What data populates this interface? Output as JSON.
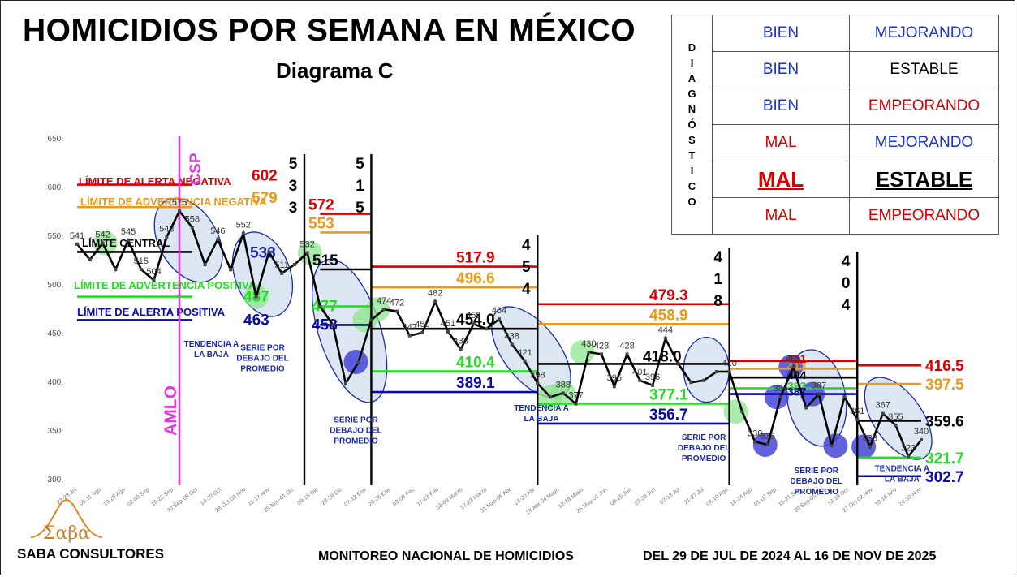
{
  "title": "HOMICIDIOS POR SEMANA EN MÉXICO",
  "subtitle": "Diagrama C",
  "colors": {
    "red": "#d60000",
    "orange": "#e89a1a",
    "black": "#000000",
    "green": "#22dd22",
    "blue": "#0a0aa8",
    "magenta": "#e53ad8",
    "series": "#000000"
  },
  "diagnosis": {
    "side_letters": [
      "D",
      "I",
      "A",
      "G",
      "N",
      "Ó",
      "S",
      "T",
      "I",
      "C",
      "O"
    ],
    "rows": [
      {
        "state": "BIEN",
        "state_color": "#1a35c8",
        "trend": "MEJORANDO",
        "trend_color": "#1a35c8",
        "emphasis": false
      },
      {
        "state": "BIEN",
        "state_color": "#1a35c8",
        "trend": "ESTABLE",
        "trend_color": "#000000",
        "emphasis": false
      },
      {
        "state": "BIEN",
        "state_color": "#1a35c8",
        "trend": "EMPEORANDO",
        "trend_color": "#d60000",
        "emphasis": false
      },
      {
        "state": "MAL",
        "state_color": "#d60000",
        "trend": "MEJORANDO",
        "trend_color": "#1a35c8",
        "emphasis": false
      },
      {
        "state": "MAL",
        "state_color": "#d60000",
        "trend": "ESTABLE",
        "trend_color": "#000000",
        "emphasis": true
      },
      {
        "state": "MAL",
        "state_color": "#d60000",
        "trend": "EMPEORANDO",
        "trend_color": "#d60000",
        "emphasis": false
      }
    ]
  },
  "chart_data": {
    "type": "line",
    "ylim": [
      300,
      650
    ],
    "yticks": [
      "650.",
      "600.",
      "550.",
      "500.",
      "450.",
      "400.",
      "350.",
      "300."
    ],
    "x_tick_labels": [
      "22-28 Jul",
      "05-11 Ago",
      "19-25 Ago",
      "02-08 Sep",
      "16-22 Sep",
      "30 Sep-06 Oct",
      "14-20 Oct",
      "28 Oct-03 Nov",
      "11-17 Nov",
      "25 Nov-01 Dic",
      "09-15 Dic",
      "23-29 Dic",
      "07-12 Ene",
      "20-26 Ene",
      "03-09 Feb",
      "17-23 Feb",
      "03-09 Marzo",
      "17-23 Marzo",
      "31 Mzo-06 Abr",
      "14-20 Abr",
      "28 Abr-04 Mayo",
      "12-18 Mayo",
      "26 May-01 Jun",
      "09-15 Jun",
      "23-29 Jun",
      "07-13 Jul",
      "21-27 Jul",
      "04-10 Ago",
      "18-24 Ago",
      "01-07 Sep",
      "15-21 Sep",
      "29 Sep-05 Oct",
      "13-19 Oct",
      "27 Oct-02 Nov",
      "10-16 Nov",
      "24-30 Nov"
    ],
    "series_values": [
      541,
      525,
      542,
      515,
      545,
      515,
      504,
      548,
      575,
      558,
      520,
      546,
      515,
      552,
      487,
      533,
      511,
      520,
      532,
      477,
      458,
      398,
      420,
      463,
      474,
      472,
      447,
      450,
      482,
      451,
      433,
      459,
      454,
      464,
      438,
      421,
      398,
      384,
      388,
      377,
      430,
      428,
      395,
      428,
      401,
      396,
      444,
      418,
      399,
      401,
      410,
      410,
      369,
      338,
      335,
      384,
      415,
      373,
      387,
      334,
      384,
      361,
      333,
      367,
      355,
      323,
      340
    ],
    "labels_shown": [
      {
        "i": 0,
        "t": "541"
      },
      {
        "i": 2,
        "t": "542"
      },
      {
        "i": 4,
        "t": "545"
      },
      {
        "i": 5,
        "t": "515"
      },
      {
        "i": 6,
        "t": "504"
      },
      {
        "i": 7,
        "t": "548"
      },
      {
        "i": 8,
        "t": "575"
      },
      {
        "i": 9,
        "t": "558"
      },
      {
        "i": 11,
        "t": "546"
      },
      {
        "i": 13,
        "t": "552"
      },
      {
        "i": 16,
        "t": "511"
      },
      {
        "i": 18,
        "t": "532"
      },
      {
        "i": 24,
        "t": "474"
      },
      {
        "i": 25,
        "t": "472"
      },
      {
        "i": 26,
        "t": "447"
      },
      {
        "i": 27,
        "t": "450"
      },
      {
        "i": 28,
        "t": "482"
      },
      {
        "i": 29,
        "t": "451"
      },
      {
        "i": 30,
        "t": "433"
      },
      {
        "i": 31,
        "t": "459"
      },
      {
        "i": 33,
        "t": "464"
      },
      {
        "i": 34,
        "t": "438"
      },
      {
        "i": 35,
        "t": "421"
      },
      {
        "i": 36,
        "t": "398"
      },
      {
        "i": 38,
        "t": "388"
      },
      {
        "i": 39,
        "t": "377"
      },
      {
        "i": 40,
        "t": "430"
      },
      {
        "i": 41,
        "t": "428"
      },
      {
        "i": 42,
        "t": "395"
      },
      {
        "i": 43,
        "t": "428"
      },
      {
        "i": 44,
        "t": "401"
      },
      {
        "i": 45,
        "t": "396"
      },
      {
        "i": 46,
        "t": "444"
      },
      {
        "i": 51,
        "t": "410"
      },
      {
        "i": 53,
        "t": "338"
      },
      {
        "i": 54,
        "t": "335"
      },
      {
        "i": 55,
        "t": "384"
      },
      {
        "i": 56,
        "t": "415"
      },
      {
        "i": 58,
        "t": "387"
      },
      {
        "i": 61,
        "t": "361"
      },
      {
        "i": 62,
        "t": "333"
      },
      {
        "i": 63,
        "t": "367"
      },
      {
        "i": 64,
        "t": "355"
      },
      {
        "i": 65,
        "t": "323"
      },
      {
        "i": 66,
        "t": "340"
      }
    ],
    "segments": [
      {
        "x0": 0,
        "x1": 9,
        "red": 602,
        "orange": 579,
        "central": 533,
        "green": 487,
        "blue": 463,
        "red_label": "602",
        "orange_label": "579",
        "central_label": "533",
        "green_label": "487",
        "blue_label": "463"
      },
      {
        "x0": 19,
        "x1": 23,
        "red": 572,
        "orange": 553,
        "central": 515,
        "green": 477,
        "blue": 458,
        "red_label": "572",
        "orange_label": "553",
        "central_label": "515",
        "green_label": "477",
        "blue_label": "458"
      },
      {
        "x0": 23,
        "x1": 36,
        "red": 517.9,
        "orange": 496.6,
        "central": 454.0,
        "green": 410.4,
        "blue": 389.1,
        "red_label": "517.9",
        "orange_label": "496.6",
        "central_label": "454.0",
        "green_label": "410.4",
        "blue_label": "389.1"
      },
      {
        "x0": 36,
        "x1": 51,
        "red": 479.3,
        "orange": 458.9,
        "central": 418.0,
        "green": 377.1,
        "blue": 356.7,
        "red_label": "479.3",
        "orange_label": "458.9",
        "central_label": "418.0",
        "green_label": "377.1",
        "blue_label": "356.7"
      },
      {
        "x0": 51,
        "x1": 61,
        "red": 421,
        "orange": 413,
        "central": 404,
        "green": 393,
        "blue": 387,
        "red_label": "421",
        "orange_label": "413",
        "central_label": "404",
        "green_label": "393",
        "blue_label": "387"
      },
      {
        "x0": 61,
        "x1": 66,
        "red": 416.5,
        "orange": 397.5,
        "central": 359.6,
        "green": 321.7,
        "blue": 302.7,
        "red_label": "416.5",
        "orange_label": "397.5",
        "central_label": "359.6",
        "green_label": "321.7",
        "blue_label": "302.7"
      }
    ],
    "limit_labels": {
      "red": "LÍMITE DE ALERTA NEGATIVA",
      "orange": "LÍMITE DE ADVERTENCIA NEGATIVA",
      "central": "LÍMITE CENTRAL",
      "green": "LÍMITE DE ADVERTENCIA POSITIVA",
      "blue": "LÍMITE DE ALERTA POSITIVA"
    },
    "dividers": [
      {
        "x": 17.5,
        "digits": [
          "5",
          "3",
          "3"
        ]
      },
      {
        "x": 23,
        "digits": [
          "5",
          "1",
          "5"
        ]
      },
      {
        "x": 36,
        "digits": [
          "4",
          "5",
          "4"
        ]
      },
      {
        "x": 51,
        "digits": [
          "4",
          "1",
          "8"
        ]
      },
      {
        "x": 61,
        "digits": [
          "4",
          "0",
          "4"
        ]
      }
    ],
    "markers": [
      {
        "x": 8.3,
        "label": "CSP"
      },
      {
        "x": 8.3,
        "label": "AMLO"
      }
    ],
    "annotations": [
      {
        "x": 10.5,
        "y": 436,
        "text": [
          "TENDENCIA A",
          "LA BAJA"
        ]
      },
      {
        "x": 14.5,
        "y": 432,
        "text": [
          "SERIE POR",
          "DEBAJO DEL",
          "PROMEDIO"
        ]
      },
      {
        "x": 21.8,
        "y": 358,
        "text": [
          "SERIE POR",
          "DEBAJO DEL",
          "PROMEDIO"
        ]
      },
      {
        "x": 36.3,
        "y": 370,
        "text": [
          "TENDENCIA A",
          "LA BAJA"
        ]
      },
      {
        "x": 49,
        "y": 340,
        "text": [
          "SERIE POR",
          "DEBAJO DEL",
          "PROMEDIO"
        ]
      },
      {
        "x": 57.8,
        "y": 306,
        "text": [
          "SERIE POR",
          "DEBAJO DEL",
          "PROMEDIO"
        ]
      },
      {
        "x": 64.5,
        "y": 308,
        "text": [
          "TENDENCIA A",
          "LA BAJA"
        ]
      }
    ]
  },
  "footer": {
    "company": "SABA CONSULTORES",
    "logo_text": "Σαβα",
    "monitor": "MONITOREO NACIONAL DE HOMICIDIOS",
    "range": "DEL 29 DE JUL DE 2024 AL 16 DE NOV DE 2025"
  }
}
